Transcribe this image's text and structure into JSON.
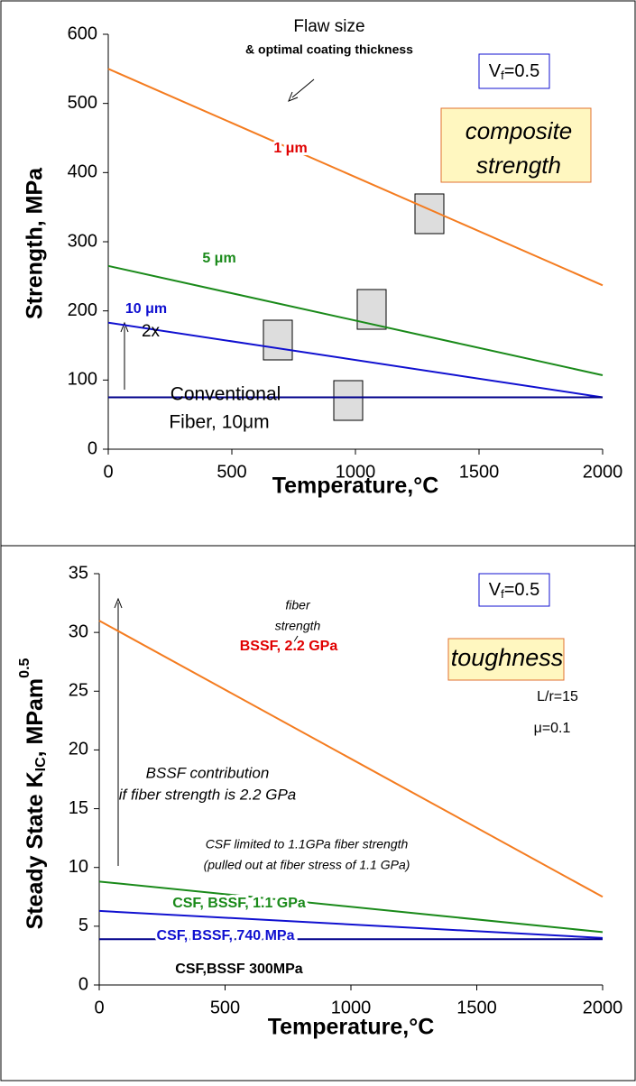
{
  "chart_data": [
    {
      "type": "line",
      "y_label": "Strength, MPa",
      "x_label": "Temperature,°C",
      "x": [
        0,
        2000
      ],
      "xlim": [
        0,
        2000
      ],
      "xticks": [
        0,
        500,
        1000,
        1500,
        2000
      ],
      "ylim": [
        0,
        600
      ],
      "yticks": [
        0,
        100,
        200,
        300,
        400,
        500,
        600
      ],
      "grid": false,
      "series": [
        {
          "name": "1 μm",
          "color": "#f47c20",
          "label_color": "#e00000",
          "values": [
            550,
            237
          ]
        },
        {
          "name": "5 μm",
          "color": "#1a8a1a",
          "label_color": "#1a8a1a",
          "values": [
            265,
            107
          ]
        },
        {
          "name": "10 μm",
          "color": "#1010d0",
          "label_color": "#1010d0",
          "values": [
            183,
            75
          ]
        },
        {
          "color": "#00008b",
          "values": [
            75,
            75
          ]
        }
      ],
      "vf": {
        "main": "V",
        "sub": "f",
        "rest": "=0.5"
      },
      "annotations": [
        "Flaw size",
        "& optimal coating thickness",
        "2x",
        "Conventional",
        "Fiber, 10μm",
        "composite",
        "strength"
      ]
    },
    {
      "type": "line",
      "y_label": {
        "main": "Steady State K",
        "sub": "IC",
        "unit": ",  MPam",
        "sup": "0.5"
      },
      "x_label": "Temperature,°C",
      "x": [
        0,
        2000
      ],
      "xlim": [
        0,
        2000
      ],
      "xticks": [
        0,
        500,
        1000,
        1500,
        2000
      ],
      "ylim": [
        0,
        35
      ],
      "yticks": [
        0,
        5,
        10,
        15,
        20,
        25,
        30,
        35
      ],
      "grid": false,
      "series": [
        {
          "name": "BSSF, 2.2 GPa",
          "color": "#f47c20",
          "label_color": "#e00000",
          "values": [
            31,
            7.5
          ]
        },
        {
          "name": "CSF, BSSF, 1.1 GPa",
          "color": "#1a8a1a",
          "label_color": "#1a8a1a",
          "values": [
            8.8,
            4.5
          ]
        },
        {
          "name": "CSF, BSSF, 740 MPa",
          "color": "#1010d0",
          "label_color": "#1010d0",
          "values": [
            6.3,
            4.0
          ]
        },
        {
          "name": "CSF,BSSF 300MPa",
          "color": "#00008b",
          "label_color": "#000000",
          "values": [
            3.9,
            3.9
          ]
        }
      ],
      "vf": {
        "main": "V",
        "sub": "f",
        "rest": "=0.5"
      },
      "annotations": [
        "fiber",
        "strength",
        "toughness",
        "L/r=15",
        "μ=0.1",
        "BSSF contribution",
        "if fiber strength is 2.2 GPa",
        "CSF limited to 1.1GPa fiber strength",
        "(pulled out at fiber stress of 1.1 GPa)"
      ]
    }
  ]
}
